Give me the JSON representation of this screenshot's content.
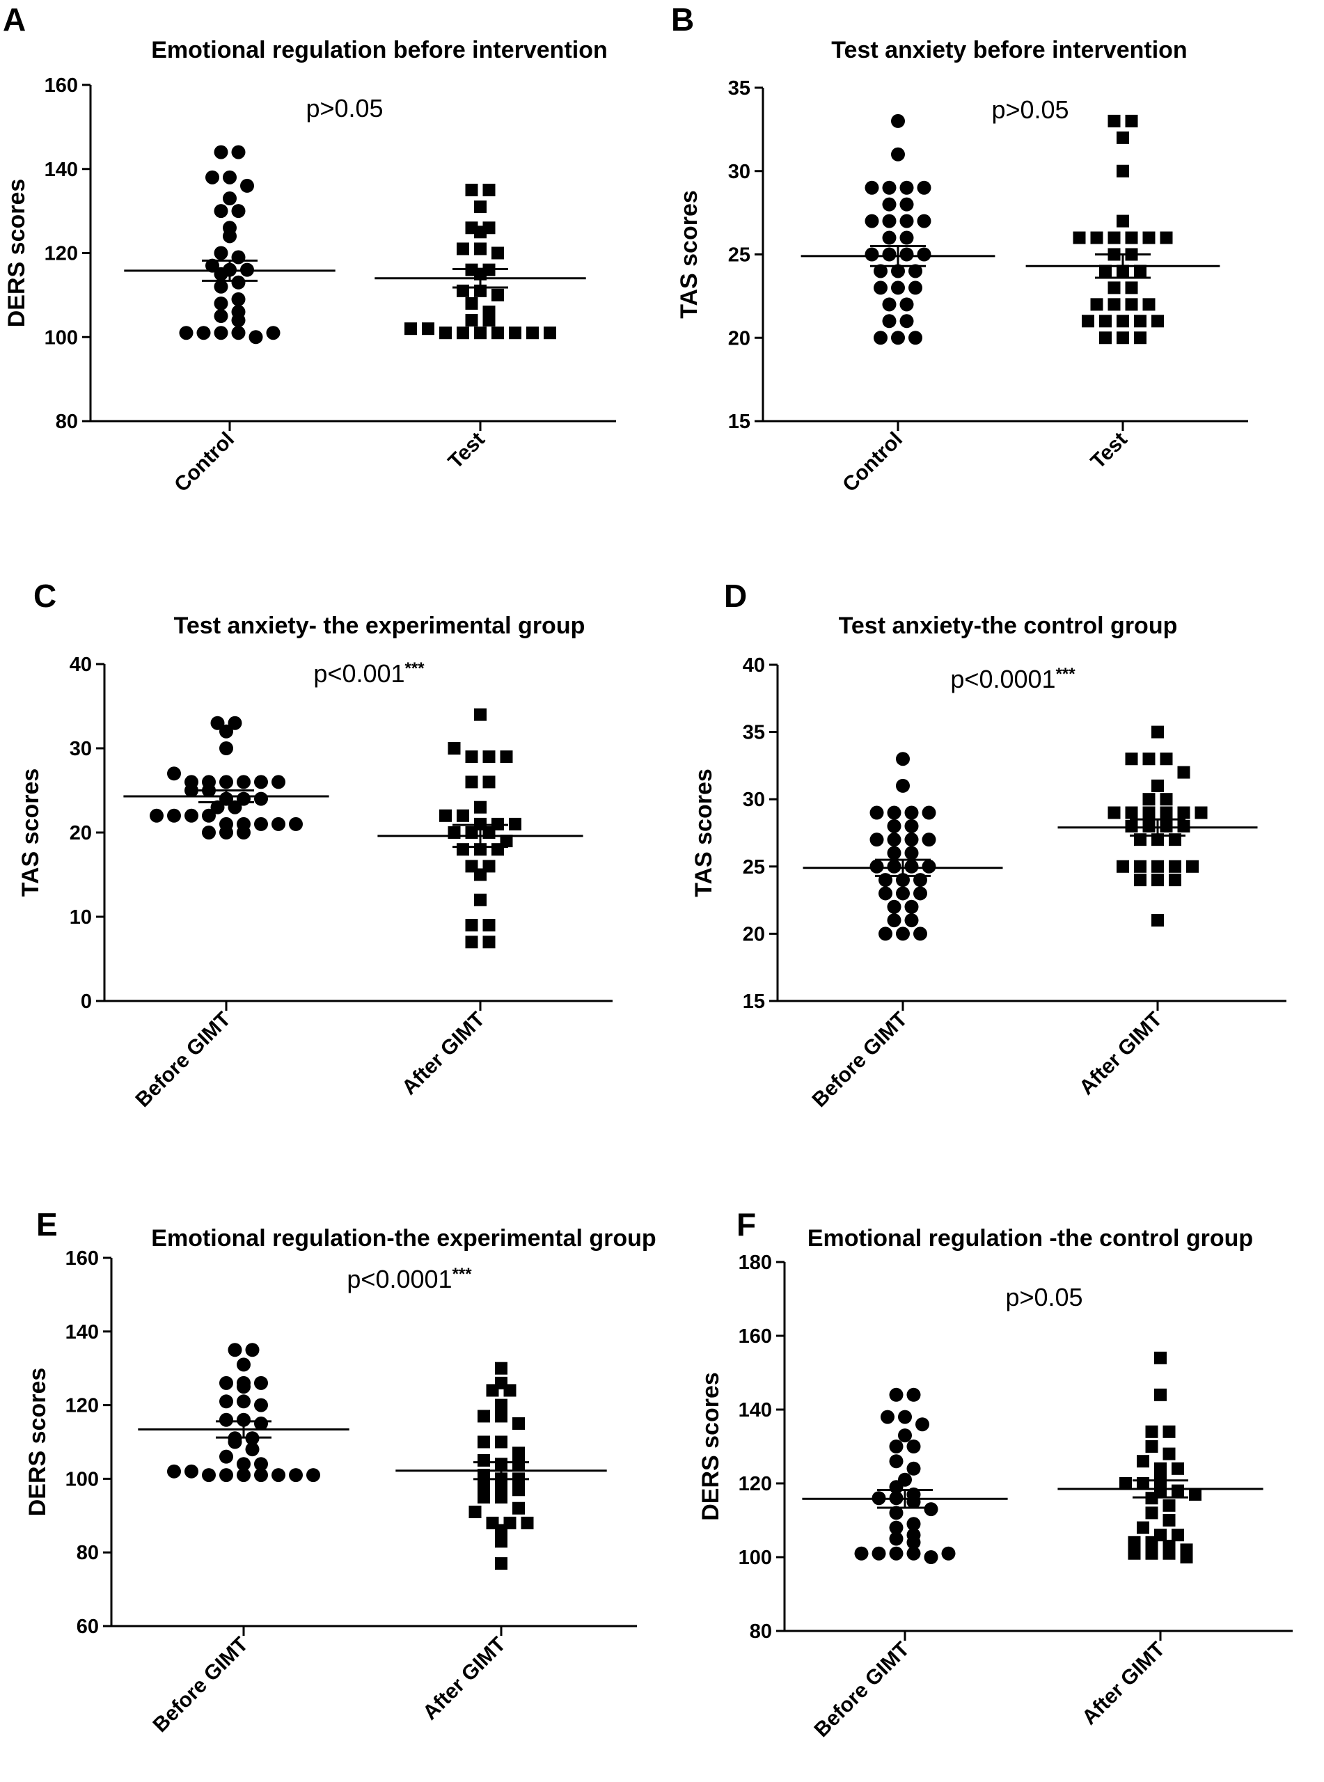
{
  "chart_data": [
    {
      "panel": "A",
      "type": "scatter",
      "title": "Emotional regulation before intervention",
      "ylabel": "DERS scores",
      "xlabel": "",
      "ylim": [
        80,
        160
      ],
      "yticks": [
        80,
        100,
        120,
        140,
        160
      ],
      "categories": [
        "Control",
        "Test"
      ],
      "annotation": {
        "text": "p>0.05",
        "stars": ""
      },
      "series": [
        {
          "name": "Control",
          "marker": "circle",
          "values": [
            144,
            144,
            138,
            138,
            136,
            133,
            130,
            130,
            126,
            124,
            120,
            119,
            117,
            116,
            116,
            115,
            113,
            112,
            109,
            108,
            106,
            105,
            104,
            101,
            101,
            101,
            101,
            100,
            101
          ],
          "mean": 115.8,
          "sem": 2.4
        },
        {
          "name": "Test",
          "marker": "square",
          "values": [
            135,
            135,
            131,
            126,
            126,
            125,
            121,
            121,
            120,
            116,
            116,
            115,
            111,
            111,
            110,
            108,
            106,
            104,
            104,
            102,
            102,
            101,
            101,
            101,
            101,
            101,
            101,
            101
          ],
          "mean": 114.0,
          "sem": 2.2
        }
      ]
    },
    {
      "panel": "B",
      "type": "scatter",
      "title": "Test anxiety before intervention",
      "ylabel": "TAS scores",
      "xlabel": "",
      "ylim": [
        15,
        35
      ],
      "yticks": [
        15,
        20,
        25,
        30,
        35
      ],
      "categories": [
        "Control",
        "Test"
      ],
      "annotation": {
        "text": "p>0.05",
        "stars": ""
      },
      "series": [
        {
          "name": "Control",
          "marker": "circle",
          "values": [
            33,
            31,
            29,
            29,
            29,
            29,
            28,
            28,
            27,
            27,
            27,
            27,
            26,
            26,
            25,
            25,
            25,
            25,
            24,
            24,
            24,
            23,
            23,
            23,
            22,
            22,
            21,
            21,
            20,
            20,
            20
          ],
          "mean": 24.9,
          "sem": 0.6
        },
        {
          "name": "Test",
          "marker": "square",
          "values": [
            33,
            33,
            32,
            30,
            27,
            26,
            26,
            26,
            26,
            26,
            26,
            25,
            25,
            24,
            24,
            24,
            23,
            23,
            22,
            22,
            22,
            22,
            21,
            21,
            21,
            21,
            21,
            20,
            20,
            20
          ],
          "mean": 24.3,
          "sem": 0.7
        }
      ]
    },
    {
      "panel": "C",
      "type": "scatter",
      "title": "Test anxiety- the experimental group",
      "ylabel": "TAS scores",
      "xlabel": "",
      "ylim": [
        0,
        40
      ],
      "yticks": [
        0,
        10,
        20,
        30,
        40
      ],
      "categories": [
        "Before GIMT",
        "After GIMT"
      ],
      "annotation": {
        "text": "p<0.001",
        "stars": "***"
      },
      "series": [
        {
          "name": "Before GIMT",
          "marker": "circle",
          "values": [
            33,
            33,
            32,
            30,
            27,
            26,
            26,
            26,
            26,
            26,
            26,
            25,
            25,
            24,
            24,
            24,
            23,
            23,
            22,
            22,
            22,
            22,
            21,
            21,
            21,
            21,
            21,
            20,
            20,
            20
          ],
          "mean": 24.3,
          "sem": 0.7
        },
        {
          "name": "After GIMT",
          "marker": "square",
          "values": [
            34,
            30,
            29,
            29,
            29,
            26,
            26,
            23,
            22,
            22,
            21,
            21,
            21,
            20,
            20,
            20,
            19,
            18,
            18,
            18,
            16,
            16,
            15,
            12,
            9,
            9,
            7,
            7
          ],
          "mean": 19.6,
          "sem": 1.3
        }
      ]
    },
    {
      "panel": "D",
      "type": "scatter",
      "title": "Test anxiety-the control group",
      "ylabel": "TAS scores",
      "xlabel": "",
      "ylim": [
        15,
        40
      ],
      "yticks": [
        15,
        20,
        25,
        30,
        35,
        40
      ],
      "categories": [
        "Before GIMT",
        "After GIMT"
      ],
      "annotation": {
        "text": "p<0.0001",
        "stars": "***"
      },
      "series": [
        {
          "name": "Before GIMT",
          "marker": "circle",
          "values": [
            33,
            31,
            29,
            29,
            29,
            29,
            28,
            28,
            27,
            27,
            27,
            27,
            26,
            26,
            25,
            25,
            25,
            25,
            24,
            24,
            24,
            23,
            23,
            23,
            22,
            22,
            21,
            21,
            20,
            20,
            20
          ],
          "mean": 24.9,
          "sem": 0.6
        },
        {
          "name": "After GIMT",
          "marker": "square",
          "values": [
            35,
            33,
            33,
            33,
            32,
            31,
            30,
            30,
            29,
            29,
            29,
            29,
            29,
            29,
            28,
            28,
            28,
            28,
            27,
            27,
            27,
            25,
            25,
            25,
            25,
            25,
            24,
            24,
            24,
            21
          ],
          "mean": 27.9,
          "sem": 0.6
        }
      ]
    },
    {
      "panel": "E",
      "type": "scatter",
      "title": "Emotional regulation-the experimental group",
      "ylabel": "DERS scores",
      "xlabel": "",
      "ylim": [
        60,
        160
      ],
      "yticks": [
        60,
        80,
        100,
        120,
        140,
        160
      ],
      "categories": [
        "Before GIMT",
        "After GIMT"
      ],
      "annotation": {
        "text": "p<0.0001",
        "stars": "***"
      },
      "series": [
        {
          "name": "Before GIMT",
          "marker": "circle",
          "values": [
            135,
            135,
            131,
            126,
            126,
            125,
            126,
            121,
            121,
            120,
            116,
            116,
            115,
            111,
            111,
            110,
            108,
            106,
            104,
            104,
            102,
            102,
            101,
            101,
            101,
            101,
            101,
            101,
            101
          ],
          "mean": 113.4,
          "sem": 2.2
        },
        {
          "name": "After GIMT",
          "marker": "square",
          "values": [
            130,
            126,
            124,
            124,
            120,
            117,
            117,
            115,
            110,
            110,
            107,
            105,
            104,
            104,
            101,
            100,
            100,
            98,
            98,
            97,
            95,
            95,
            92,
            91,
            88,
            88,
            88,
            86,
            83,
            77
          ],
          "mean": 102.2,
          "sem": 2.3
        }
      ]
    },
    {
      "panel": "F",
      "type": "scatter",
      "title": "Emotional regulation -the control group",
      "ylabel": "DERS scores",
      "xlabel": "",
      "ylim": [
        80,
        180
      ],
      "yticks": [
        80,
        100,
        120,
        140,
        160,
        180
      ],
      "categories": [
        "Before GIMT",
        "After GIMT"
      ],
      "annotation": {
        "text": "p>0.05",
        "stars": ""
      },
      "series": [
        {
          "name": "Before GIMT",
          "marker": "circle",
          "values": [
            144,
            144,
            138,
            138,
            136,
            133,
            130,
            130,
            126,
            124,
            121,
            119,
            117,
            116,
            116,
            115,
            113,
            112,
            109,
            108,
            106,
            105,
            104,
            101,
            101,
            101,
            101,
            100,
            101
          ],
          "mean": 115.8,
          "sem": 2.4
        },
        {
          "name": "After GIMT",
          "marker": "square",
          "values": [
            154,
            144,
            134,
            134,
            130,
            128,
            126,
            124,
            124,
            121,
            120,
            120,
            118,
            118,
            117,
            116,
            114,
            112,
            110,
            108,
            106,
            106,
            104,
            104,
            103,
            102,
            101,
            101,
            101,
            100
          ],
          "mean": 118.5,
          "sem": 2.3
        }
      ]
    }
  ]
}
